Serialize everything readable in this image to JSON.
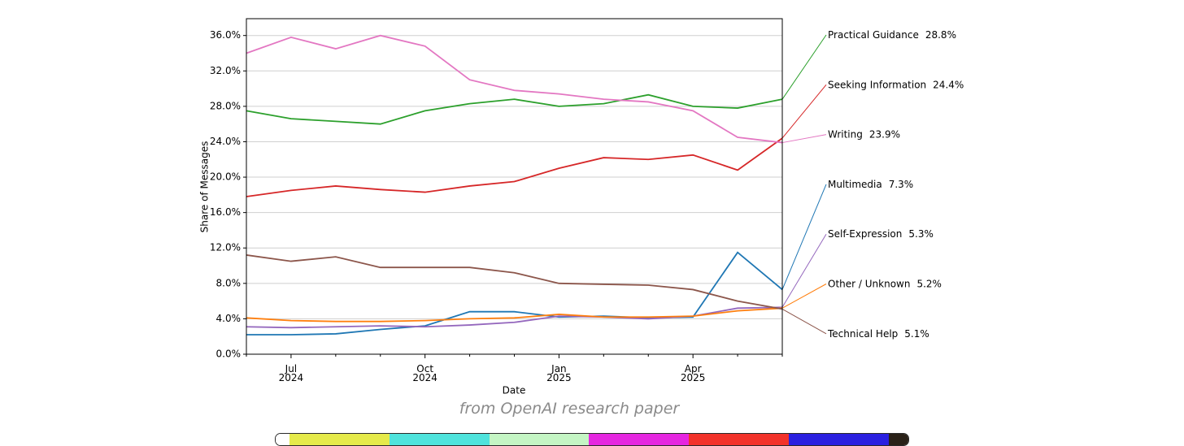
{
  "chart_data": {
    "type": "line",
    "y_label": "Share of Messages",
    "x_label": "Date",
    "x": [
      "2024-06",
      "2024-07",
      "2024-08",
      "2024-09",
      "2024-10",
      "2024-11",
      "2024-12",
      "2025-01",
      "2025-02",
      "2025-03",
      "2025-04",
      "2025-05",
      "2025-06"
    ],
    "xlim": [
      "2024-06",
      "2025-06"
    ],
    "xticks": [
      {
        "value": "2024-07",
        "label": "Jul\n2024"
      },
      {
        "value": "2024-10",
        "label": "Oct\n2024"
      },
      {
        "value": "2025-01",
        "label": "Jan\n2025"
      },
      {
        "value": "2025-04",
        "label": "Apr\n2025"
      }
    ],
    "ylim": [
      0,
      37.9
    ],
    "yticks": [
      {
        "value": 0,
        "label": "0.0%"
      },
      {
        "value": 4,
        "label": "4.0%"
      },
      {
        "value": 8,
        "label": "8.0%"
      },
      {
        "value": 12,
        "label": "12.0%"
      },
      {
        "value": 16,
        "label": "16.0%"
      },
      {
        "value": 20,
        "label": "20.0%"
      },
      {
        "value": 24,
        "label": "24.0%"
      },
      {
        "value": 28,
        "label": "28.0%"
      },
      {
        "value": 32,
        "label": "32.0%"
      },
      {
        "value": 36,
        "label": "36.0%"
      }
    ],
    "grid": true,
    "series": [
      {
        "name": "Practical Guidance",
        "color": "#2ca02c",
        "values": [
          27.5,
          26.6,
          26.3,
          26.0,
          27.5,
          28.3,
          28.8,
          28.0,
          28.3,
          29.3,
          28.0,
          27.8,
          28.8
        ],
        "value_labels": [
          null,
          null,
          null,
          null,
          null,
          null,
          null,
          null,
          null,
          null,
          null,
          null,
          "28.8%"
        ]
      },
      {
        "name": "Seeking Information",
        "color": "#d62728",
        "values": [
          17.8,
          18.5,
          19.0,
          18.6,
          18.3,
          19.0,
          19.5,
          21.0,
          22.2,
          22.0,
          22.5,
          20.8,
          24.4
        ],
        "value_labels": [
          null,
          null,
          null,
          null,
          null,
          null,
          null,
          null,
          null,
          null,
          null,
          null,
          "24.4%"
        ]
      },
      {
        "name": "Writing",
        "color": "#e377c2",
        "values": [
          34.0,
          35.8,
          34.5,
          36.0,
          34.8,
          31.0,
          29.8,
          29.4,
          28.8,
          28.5,
          27.5,
          24.5,
          23.9
        ],
        "value_labels": [
          null,
          null,
          null,
          null,
          null,
          null,
          null,
          null,
          null,
          null,
          null,
          null,
          "23.9%"
        ]
      },
      {
        "name": "Multimedia",
        "color": "#1f77b4",
        "values": [
          2.2,
          2.2,
          2.3,
          2.8,
          3.2,
          4.8,
          4.8,
          4.2,
          4.3,
          4.1,
          4.2,
          11.5,
          7.3
        ],
        "value_labels": [
          null,
          null,
          null,
          null,
          null,
          null,
          null,
          null,
          null,
          null,
          null,
          null,
          "7.3%"
        ]
      },
      {
        "name": "Self-Expression",
        "color": "#9467bd",
        "values": [
          3.1,
          3.0,
          3.1,
          3.2,
          3.1,
          3.3,
          3.6,
          4.3,
          4.2,
          4.0,
          4.3,
          5.2,
          5.3
        ],
        "value_labels": [
          null,
          null,
          null,
          null,
          null,
          null,
          null,
          null,
          null,
          null,
          null,
          null,
          "5.3%"
        ]
      },
      {
        "name": "Other / Unknown",
        "color": "#ff7f0e",
        "values": [
          4.1,
          3.8,
          3.7,
          3.7,
          3.8,
          4.0,
          4.1,
          4.5,
          4.2,
          4.2,
          4.3,
          4.9,
          5.2
        ],
        "value_labels": [
          null,
          null,
          null,
          null,
          null,
          null,
          null,
          null,
          null,
          null,
          null,
          null,
          "5.2%"
        ]
      },
      {
        "name": "Technical Help",
        "color": "#8c564b",
        "values": [
          11.2,
          10.5,
          11.0,
          9.8,
          9.8,
          9.8,
          9.2,
          8.0,
          7.9,
          7.8,
          7.3,
          6.0,
          5.1
        ],
        "value_labels": [
          null,
          null,
          null,
          null,
          null,
          null,
          null,
          null,
          null,
          null,
          null,
          null,
          "5.1%"
        ]
      }
    ]
  },
  "caption": "from OpenAI research paper"
}
